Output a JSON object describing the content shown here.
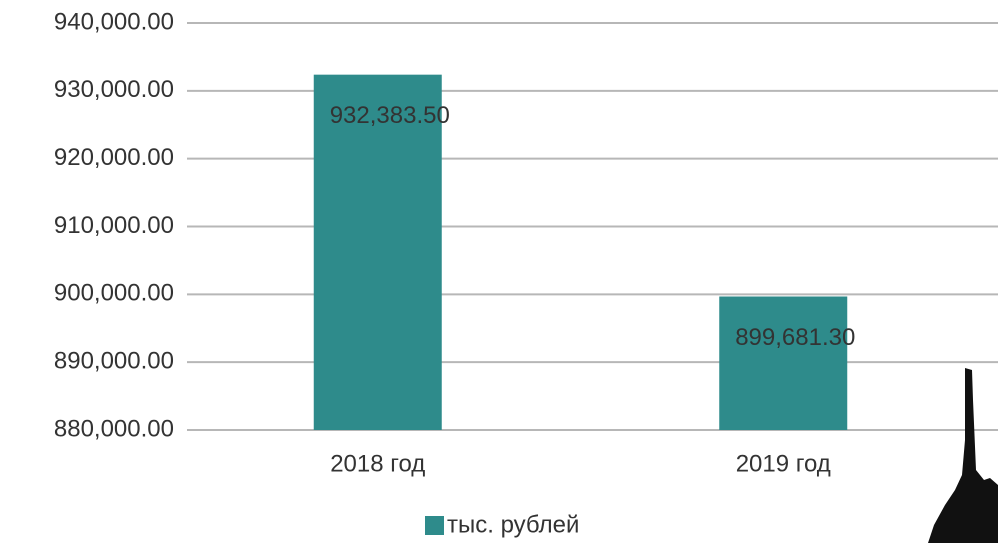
{
  "chart_data": {
    "type": "bar",
    "categories": [
      "2018 год",
      "2019 год"
    ],
    "series": [
      {
        "name": "тыс. рублей",
        "color": "#2e8b8b",
        "values": [
          932383.5,
          899681.3
        ],
        "value_labels": [
          "932,383.50",
          "899,681.30"
        ]
      }
    ],
    "ylim": [
      880000,
      940000
    ],
    "yticks": [
      {
        "value": 880000,
        "label": "880,000.00"
      },
      {
        "value": 890000,
        "label": "890,000.00"
      },
      {
        "value": 900000,
        "label": "900,000.00"
      },
      {
        "value": 910000,
        "label": "910,000.00"
      },
      {
        "value": 920000,
        "label": "920,000.00"
      },
      {
        "value": 930000,
        "label": "930,000.00"
      },
      {
        "value": 940000,
        "label": "940,000.00"
      }
    ],
    "grid": true,
    "legend": "bottom"
  }
}
